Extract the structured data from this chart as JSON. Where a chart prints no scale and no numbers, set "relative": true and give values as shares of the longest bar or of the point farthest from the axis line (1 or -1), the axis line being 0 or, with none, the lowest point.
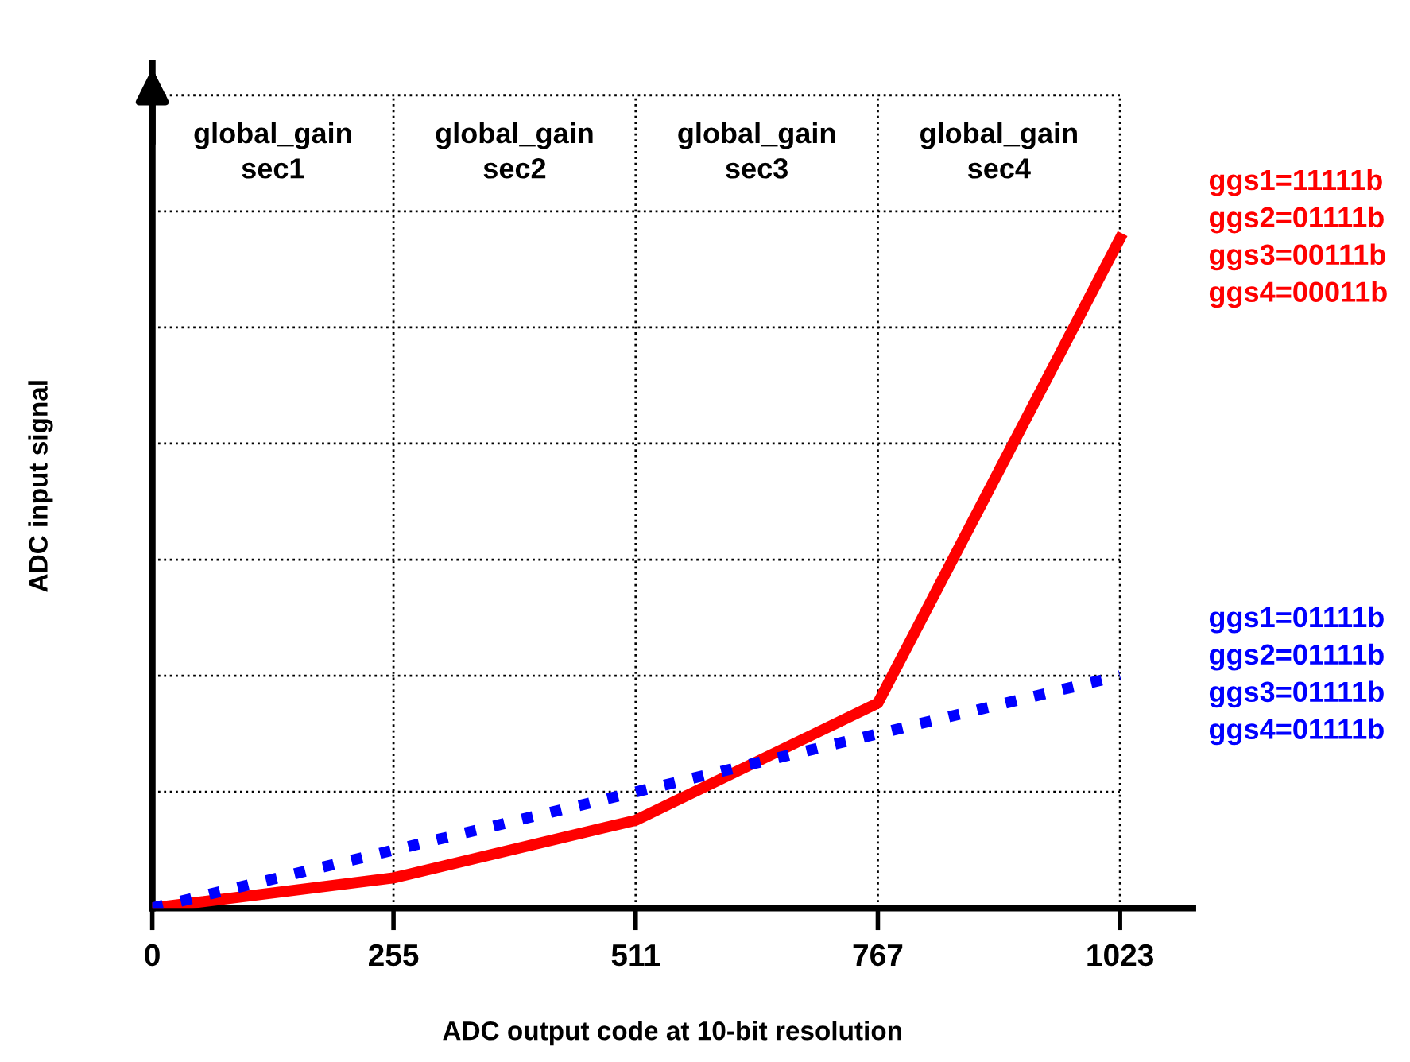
{
  "chart_data": {
    "type": "line",
    "relative": true,
    "xlabel": "ADC output code at 10-bit resolution",
    "ylabel": "ADC input signal",
    "xlim": [
      0,
      1100
    ],
    "xticks": [
      0,
      255,
      511,
      767,
      1023
    ],
    "grid": true,
    "legend": false,
    "tick_labels": "x",
    "annotations": [
      "global_gain\nsec1",
      "global_gain\nsec2",
      "global_gain\nsec3",
      "global_gain\nsec4"
    ],
    "series": [
      {
        "name": "ggs1=11111b\nggs2=01111b\nggs3=00111b\nggs4=00011b",
        "color": "#ff0000",
        "line_style": "solid",
        "x": [
          0,
          255,
          511,
          767,
          1023
        ],
        "values": [
          0,
          0.045,
          0.131,
          0.306,
          1
        ]
      },
      {
        "name": "ggs1=01111b\nggs2=01111b\nggs3=01111b\nggs4=01111b",
        "color": "#0000ff",
        "line_style": "dotted",
        "x": [
          0,
          1023
        ],
        "values": [
          0,
          0.347
        ]
      }
    ]
  }
}
